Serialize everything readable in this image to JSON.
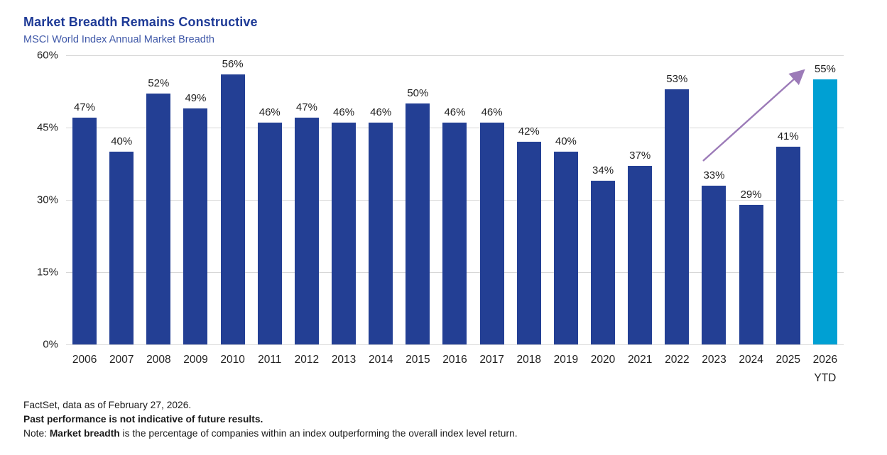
{
  "chart_data": {
    "type": "bar",
    "title": "Market Breadth Remains Constructive",
    "subtitle": "MSCI World Index Annual Market Breadth",
    "categories": [
      "2006",
      "2007",
      "2008",
      "2009",
      "2010",
      "2011",
      "2012",
      "2013",
      "2014",
      "2015",
      "2016",
      "2017",
      "2018",
      "2019",
      "2020",
      "2021",
      "2022",
      "2023",
      "2024",
      "2025",
      "2026\nYTD"
    ],
    "values": [
      47,
      40,
      52,
      49,
      56,
      46,
      47,
      46,
      46,
      50,
      46,
      46,
      42,
      40,
      34,
      37,
      53,
      33,
      29,
      41,
      55
    ],
    "value_suffix": "%",
    "xlabel": "",
    "ylabel": "",
    "ylim": [
      0,
      60
    ],
    "ytick_values": [
      0,
      15,
      30,
      45,
      60
    ],
    "yticks": [
      "0%",
      "15%",
      "30%",
      "45%",
      "60%"
    ],
    "grid": "horizontal",
    "legend": "none",
    "bar_color": "#233f94",
    "highlight_color": "#00a0d3",
    "highlight_index": 20,
    "annotation": {
      "type": "arrow",
      "description": "upward trend arrow from above the 2023 bar label to the 55% label of the 2026 YTD bar",
      "color": "#9c7bb8"
    }
  },
  "footer": {
    "source": "FactSet, data as of February 27, 2026.",
    "disclaimer": "Past performance is not indicative of future results.",
    "note_prefix": "Note: ",
    "note_bold": "Market breadth",
    "note_rest": " is the percentage of companies within an index outperforming the overall index level return."
  },
  "colors": {
    "title_text": "#1e3a96",
    "subtitle_text": "#3f58a8",
    "bar": "#233f94",
    "highlight_bar": "#00a0d3",
    "arrow": "#9c7bb8",
    "gridline": "#d7d7d7",
    "axis_text": "#1f1f1f"
  }
}
